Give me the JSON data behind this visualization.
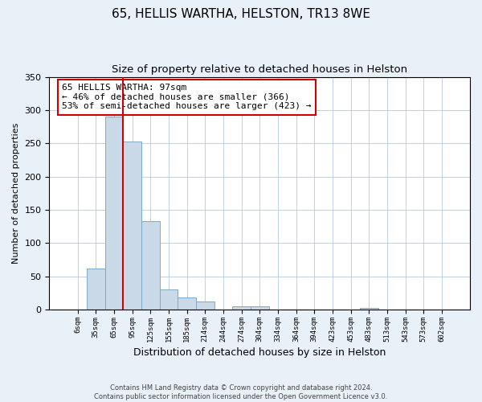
{
  "title": "65, HELLIS WARTHA, HELSTON, TR13 8WE",
  "subtitle": "Size of property relative to detached houses in Helston",
  "xlabel": "Distribution of detached houses by size in Helston",
  "ylabel": "Number of detached properties",
  "bin_labels": [
    "6sqm",
    "35sqm",
    "65sqm",
    "95sqm",
    "125sqm",
    "155sqm",
    "185sqm",
    "214sqm",
    "244sqm",
    "274sqm",
    "304sqm",
    "334sqm",
    "364sqm",
    "394sqm",
    "423sqm",
    "453sqm",
    "483sqm",
    "513sqm",
    "543sqm",
    "573sqm",
    "602sqm"
  ],
  "bar_values": [
    0,
    62,
    290,
    253,
    133,
    30,
    18,
    12,
    0,
    5,
    5,
    0,
    0,
    0,
    0,
    0,
    3,
    0,
    0,
    0,
    0
  ],
  "bar_color": "#c9d9e8",
  "bar_edge_color": "#7aaac8",
  "vline_color": "#cc0000",
  "annotation_text": "65 HELLIS WARTHA: 97sqm\n← 46% of detached houses are smaller (366)\n53% of semi-detached houses are larger (423) →",
  "annotation_box_color": "#ffffff",
  "annotation_box_edge": "#cc0000",
  "ylim": [
    0,
    350
  ],
  "yticks": [
    0,
    50,
    100,
    150,
    200,
    250,
    300,
    350
  ],
  "background_color": "#e8f0f8",
  "axes_background": "#ffffff",
  "footnote": "Contains HM Land Registry data © Crown copyright and database right 2024.\nContains public sector information licensed under the Open Government Licence v3.0.",
  "title_fontsize": 11,
  "subtitle_fontsize": 9.5,
  "xlabel_fontsize": 9,
  "ylabel_fontsize": 8
}
